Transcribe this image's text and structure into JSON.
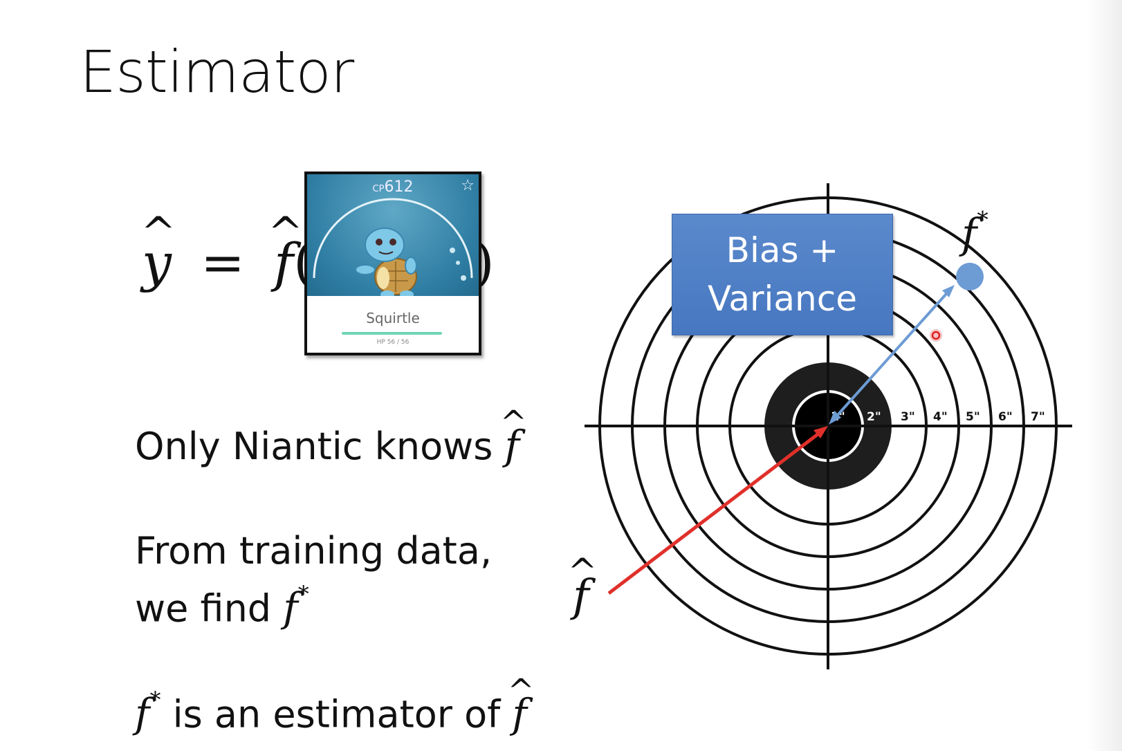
{
  "slide": {
    "title": "Estimator",
    "equation": {
      "y_hat": "y",
      "equals": "=",
      "f_hat": "f",
      "open_paren": "(",
      "close_paren": ")"
    },
    "card": {
      "cp_prefix": "CP",
      "cp_value": "612",
      "name": "Squirtle",
      "hp": "HP 56 / 56"
    },
    "lines": [
      {
        "text": "Only Niantic knows ",
        "symbol": "f"
      },
      {
        "text": "From training data,"
      },
      {
        "text": "we find ",
        "symbol": "f",
        "sup": "*"
      },
      {
        "symbol": "f",
        "sup": "*",
        "text": " is an estimator of ",
        "symbol2": "f"
      }
    ],
    "target": {
      "bias_variance_line1": "Bias +",
      "bias_variance_line2": "Variance",
      "f_star_label": "f",
      "f_star_sup": "*",
      "f_hat_label": "f",
      "ring_labels": [
        "1\"",
        "2\"",
        "3\"",
        "4\"",
        "5\"",
        "6\"",
        "7\""
      ]
    },
    "colors": {
      "arrow_red": "#e0302a",
      "arrow_blue": "#6d9bd4",
      "dot_blue": "#6d9bd4",
      "box_blue": "#4f7fc5"
    }
  }
}
